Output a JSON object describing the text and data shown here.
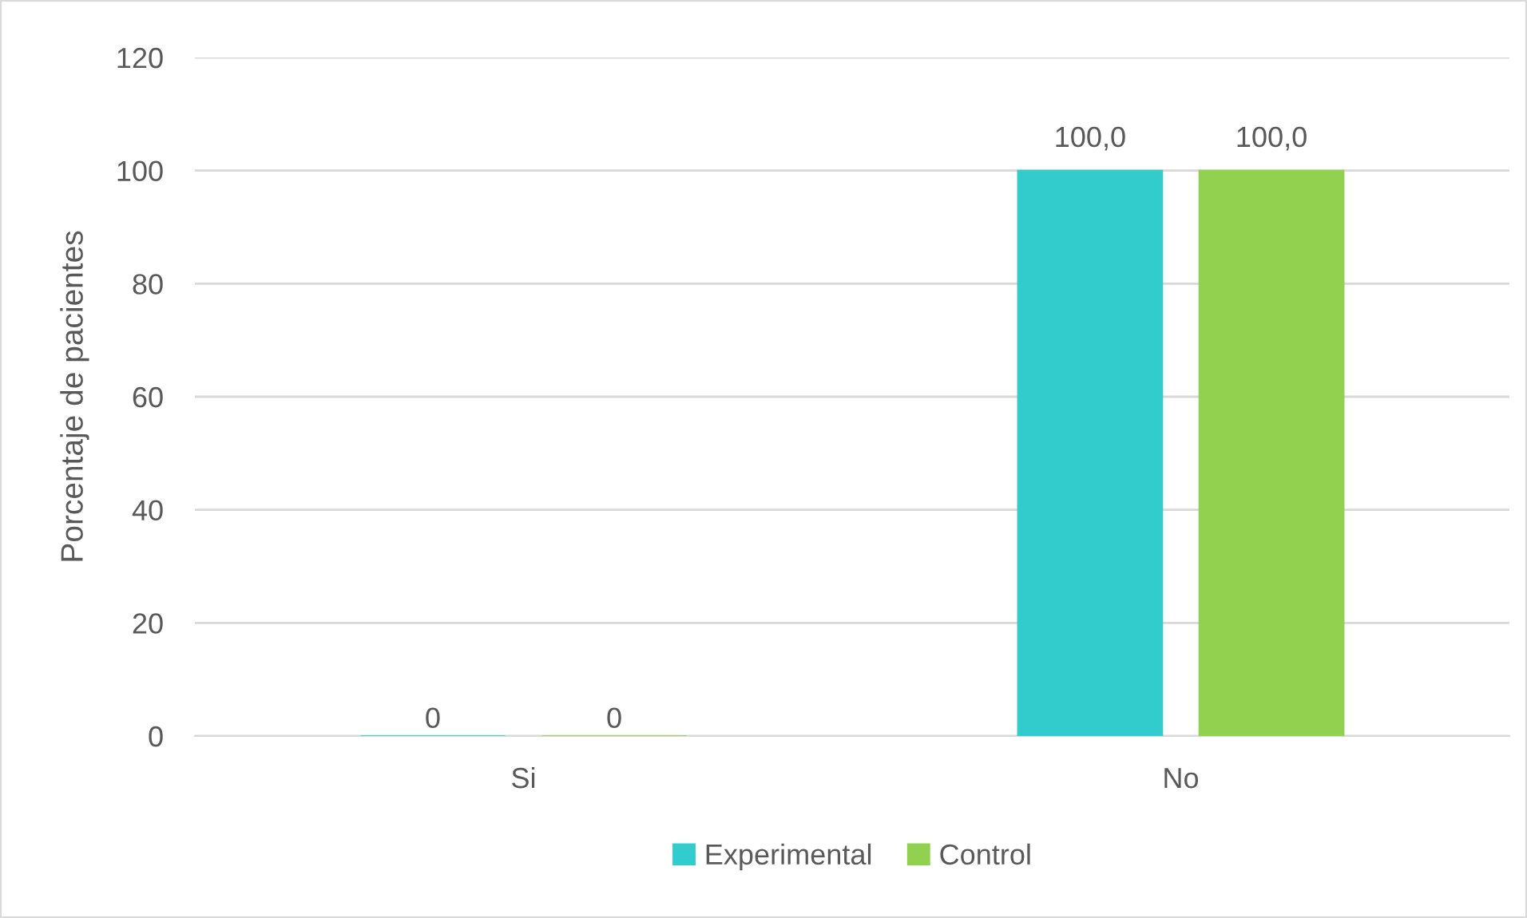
{
  "chart_data": {
    "type": "bar",
    "ylabel": "Porcentaje de pacientes",
    "categories": [
      "Si",
      "No"
    ],
    "series": [
      {
        "name": "Experimental",
        "color": "#33cccc",
        "values": [
          0,
          100
        ],
        "value_labels": [
          "0",
          "100,0"
        ]
      },
      {
        "name": "Control",
        "color": "#92d050",
        "values": [
          0,
          100
        ],
        "value_labels": [
          "0",
          "100,0"
        ]
      }
    ],
    "ylim": [
      0,
      120
    ],
    "yticks": [
      0,
      20,
      40,
      60,
      80,
      100,
      120
    ],
    "grid": "y",
    "legend": "bottom"
  }
}
